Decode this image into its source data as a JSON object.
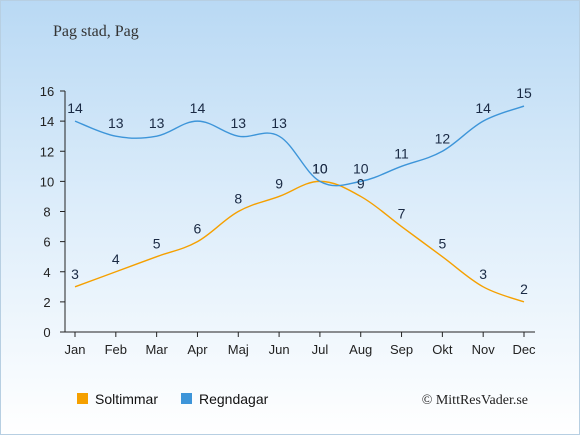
{
  "chart_data": {
    "type": "line",
    "title": "Pag stad, Pag",
    "categories": [
      "Jan",
      "Feb",
      "Mar",
      "Apr",
      "Maj",
      "Jun",
      "Jul",
      "Aug",
      "Sep",
      "Okt",
      "Nov",
      "Dec"
    ],
    "ylim": [
      0,
      16
    ],
    "yticks": [
      "0",
      "2",
      "4",
      "6",
      "8",
      "10",
      "12",
      "14",
      "16"
    ],
    "grid": false,
    "series": [
      {
        "name": "Soltimmar",
        "color": "#f5a000",
        "values": [
          3,
          4,
          5,
          6,
          8,
          9,
          10,
          9,
          7,
          5,
          3,
          2
        ]
      },
      {
        "name": "Regndagar",
        "color": "#3d95d9",
        "values": [
          14,
          13,
          13,
          14,
          13,
          13,
          10,
          10,
          11,
          12,
          14,
          15
        ]
      }
    ],
    "legend_position": "bottom-left"
  },
  "footer": {
    "copyright": "© MittResVader.se"
  }
}
